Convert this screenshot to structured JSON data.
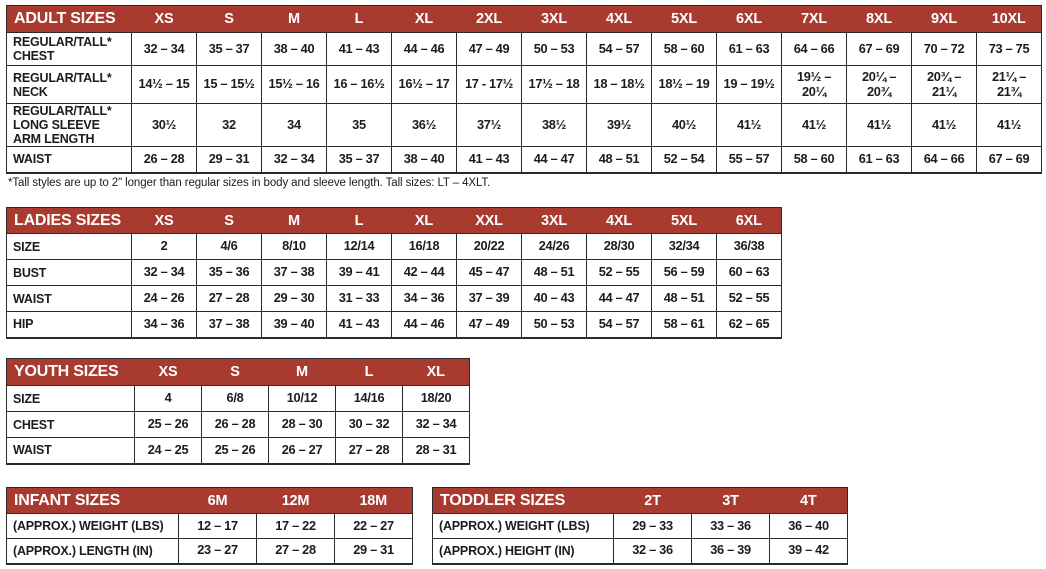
{
  "colors": {
    "header_bg": "#A83A30",
    "header_text": "#FFFFFF",
    "border": "#2A2A2A",
    "text": "#1C1C1C",
    "background": "#FFFFFF"
  },
  "footnote": "*Tall styles are up to 2\" longer than regular sizes in body and sleeve length. Tall sizes: LT – 4XLT.",
  "tables": [
    {
      "id": "adult-sizes",
      "title": "ADULT SIZES",
      "columns": [
        "XS",
        "S",
        "M",
        "L",
        "XL",
        "2XL",
        "3XL",
        "4XL",
        "5XL",
        "6XL",
        "7XL",
        "8XL",
        "9XL",
        "10XL"
      ],
      "rows": [
        {
          "label": "REGULAR/TALL*\nCHEST",
          "values": [
            "32 – 34",
            "35 – 37",
            "38 – 40",
            "41 – 43",
            "44 – 46",
            "47 – 49",
            "50 – 53",
            "54 – 57",
            "58 – 60",
            "61 – 63",
            "64 – 66",
            "67 – 69",
            "70 – 72",
            "73 – 75"
          ]
        },
        {
          "label": "REGULAR/TALL*\nNECK",
          "values": [
            "14½ – 15",
            "15 – 15½",
            "15½ – 16",
            "16 – 16½",
            "16½ – 17",
            "17 - 17½",
            "17½ – 18",
            "18 – 18½",
            "18½ – 19",
            "19 – 19½",
            "19½ –\n20¼",
            "20¼ –\n20¾",
            "20¾ –\n21¼",
            "21¼ –\n21¾"
          ]
        },
        {
          "label": "REGULAR/TALL*\nLONG SLEEVE\nARM LENGTH",
          "values": [
            "30½",
            "32",
            "34",
            "35",
            "36½",
            "37½",
            "38½",
            "39½",
            "40½",
            "41½",
            "41½",
            "41½",
            "41½",
            "41½"
          ]
        },
        {
          "label": "WAIST",
          "values": [
            "26 – 28",
            "29 – 31",
            "32 – 34",
            "35 – 37",
            "38 – 40",
            "41 – 43",
            "44 – 47",
            "48 – 51",
            "52 – 54",
            "55 – 57",
            "58 – 60",
            "61 – 63",
            "64 – 66",
            "67 – 69"
          ]
        }
      ]
    },
    {
      "id": "ladies-sizes",
      "title": "LADIES SIZES",
      "columns": [
        "XS",
        "S",
        "M",
        "L",
        "XL",
        "XXL",
        "3XL",
        "4XL",
        "5XL",
        "6XL"
      ],
      "rows": [
        {
          "label": "SIZE",
          "values": [
            "2",
            "4/6",
            "8/10",
            "12/14",
            "16/18",
            "20/22",
            "24/26",
            "28/30",
            "32/34",
            "36/38"
          ]
        },
        {
          "label": "BUST",
          "values": [
            "32 – 34",
            "35 – 36",
            "37 – 38",
            "39 – 41",
            "42 – 44",
            "45 – 47",
            "48 – 51",
            "52 – 55",
            "56 – 59",
            "60 – 63"
          ]
        },
        {
          "label": "WAIST",
          "values": [
            "24 – 26",
            "27 – 28",
            "29 – 30",
            "31 – 33",
            "34 – 36",
            "37 – 39",
            "40 – 43",
            "44 – 47",
            "48 – 51",
            "52 – 55"
          ]
        },
        {
          "label": "HIP",
          "values": [
            "34 – 36",
            "37 – 38",
            "39 – 40",
            "41 – 43",
            "44 – 46",
            "47 – 49",
            "50 – 53",
            "54 – 57",
            "58 – 61",
            "62 – 65"
          ]
        }
      ]
    },
    {
      "id": "youth-sizes",
      "title": "YOUTH SIZES",
      "columns": [
        "XS",
        "S",
        "M",
        "L",
        "XL"
      ],
      "rows": [
        {
          "label": "SIZE",
          "values": [
            "4",
            "6/8",
            "10/12",
            "14/16",
            "18/20"
          ]
        },
        {
          "label": "CHEST",
          "values": [
            "25 – 26",
            "26 – 28",
            "28 – 30",
            "30 – 32",
            "32 – 34"
          ]
        },
        {
          "label": "WAIST",
          "values": [
            "24 – 25",
            "25 – 26",
            "26 – 27",
            "27 – 28",
            "28 – 31"
          ]
        }
      ]
    },
    {
      "id": "infant-sizes",
      "title": "INFANT SIZES",
      "columns": [
        "6M",
        "12M",
        "18M"
      ],
      "rows": [
        {
          "label": "(APPROX.) WEIGHT (LBS)",
          "values": [
            "12 – 17",
            "17 – 22",
            "22 – 27"
          ]
        },
        {
          "label": "(APPROX.) LENGTH (IN)",
          "values": [
            "23 – 27",
            "27 – 28",
            "29 – 31"
          ]
        }
      ]
    },
    {
      "id": "toddler-sizes",
      "title": "TODDLER SIZES",
      "columns": [
        "2T",
        "3T",
        "4T"
      ],
      "rows": [
        {
          "label": "(APPROX.) WEIGHT (LBS)",
          "values": [
            "29 – 33",
            "33 – 36",
            "36 – 40"
          ]
        },
        {
          "label": "(APPROX.) HEIGHT (IN)",
          "values": [
            "32 – 36",
            "36 – 39",
            "39 – 42"
          ]
        }
      ]
    }
  ]
}
